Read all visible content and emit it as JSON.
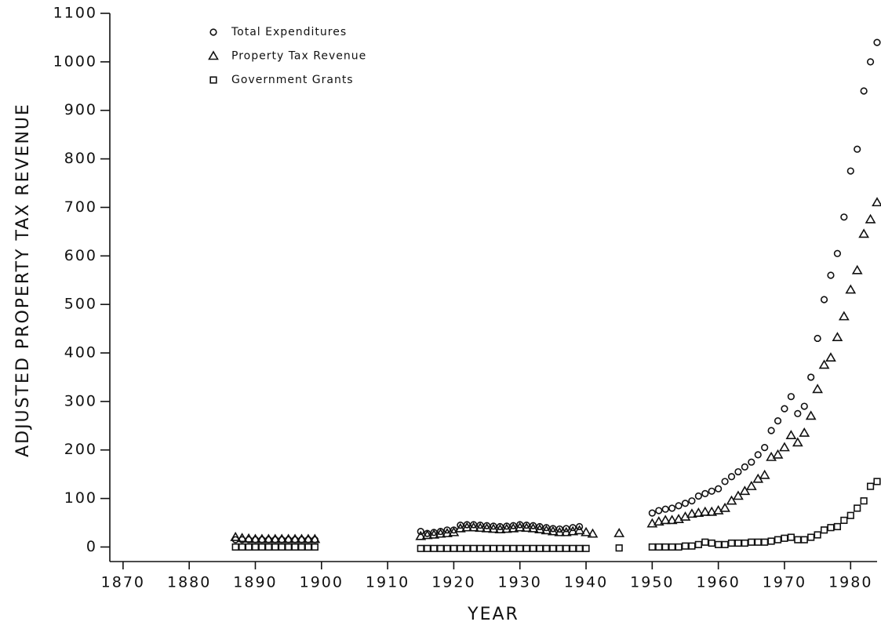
{
  "chart_data": {
    "type": "scatter",
    "x_label": "YEAR",
    "y_label": "ADJUSTED PROPERTY TAX REVENUE",
    "xlim": [
      1868,
      1984
    ],
    "ylim": [
      -30,
      1100
    ],
    "xticks": [
      1870,
      1880,
      1890,
      1900,
      1910,
      1920,
      1930,
      1940,
      1950,
      1960,
      1970,
      1980
    ],
    "yticks": [
      0,
      100,
      200,
      300,
      400,
      500,
      600,
      700,
      800,
      900,
      1000,
      1100
    ],
    "legend": "upper left",
    "series": [
      {
        "name": "Total Expenditures",
        "color": "#111111",
        "marker": "circle",
        "x": [
          1887,
          1888,
          1889,
          1890,
          1891,
          1892,
          1893,
          1894,
          1895,
          1896,
          1897,
          1898,
          1899,
          1915,
          1916,
          1917,
          1918,
          1919,
          1920,
          1921,
          1922,
          1923,
          1924,
          1925,
          1926,
          1927,
          1928,
          1929,
          1930,
          1931,
          1932,
          1933,
          1934,
          1935,
          1936,
          1937,
          1938,
          1939,
          1950,
          1951,
          1952,
          1953,
          1954,
          1955,
          1956,
          1957,
          1958,
          1959,
          1960,
          1961,
          1962,
          1963,
          1964,
          1965,
          1966,
          1967,
          1968,
          1969,
          1970,
          1971,
          1972,
          1973,
          1974,
          1975,
          1976,
          1977,
          1978,
          1979,
          1980,
          1981,
          1982,
          1983,
          1984
        ],
        "values": [
          15,
          15,
          15,
          15,
          15,
          15,
          15,
          15,
          15,
          15,
          15,
          15,
          15,
          32,
          28,
          30,
          32,
          35,
          35,
          45,
          46,
          46,
          45,
          44,
          43,
          42,
          43,
          44,
          46,
          45,
          44,
          42,
          40,
          38,
          37,
          38,
          40,
          42,
          70,
          75,
          78,
          80,
          85,
          90,
          95,
          105,
          110,
          115,
          120,
          135,
          145,
          155,
          165,
          175,
          190,
          205,
          240,
          260,
          285,
          310,
          275,
          290,
          350,
          430,
          510,
          560,
          605,
          680,
          775,
          820,
          940,
          1000,
          1040
        ]
      },
      {
        "name": "Property Tax Revenue",
        "color": "#111111",
        "marker": "triangle",
        "x": [
          1887,
          1888,
          1889,
          1890,
          1891,
          1892,
          1893,
          1894,
          1895,
          1896,
          1897,
          1898,
          1899,
          1915,
          1916,
          1917,
          1918,
          1919,
          1920,
          1921,
          1922,
          1923,
          1924,
          1925,
          1926,
          1927,
          1928,
          1929,
          1930,
          1931,
          1932,
          1933,
          1934,
          1935,
          1936,
          1937,
          1938,
          1939,
          1940,
          1941,
          1945,
          1950,
          1951,
          1952,
          1953,
          1954,
          1955,
          1956,
          1957,
          1958,
          1959,
          1960,
          1961,
          1962,
          1963,
          1964,
          1965,
          1966,
          1967,
          1968,
          1969,
          1970,
          1971,
          1972,
          1973,
          1974,
          1975,
          1976,
          1977,
          1978,
          1979,
          1980,
          1981,
          1982,
          1983,
          1984
        ],
        "values": [
          20,
          18,
          17,
          16,
          16,
          16,
          16,
          16,
          16,
          16,
          16,
          16,
          16,
          22,
          24,
          25,
          27,
          28,
          30,
          38,
          40,
          40,
          39,
          38,
          37,
          36,
          37,
          38,
          40,
          39,
          38,
          36,
          34,
          32,
          30,
          30,
          32,
          34,
          30,
          27,
          28,
          48,
          52,
          55,
          55,
          57,
          62,
          68,
          70,
          72,
          72,
          75,
          80,
          95,
          105,
          115,
          125,
          140,
          148,
          185,
          190,
          205,
          230,
          215,
          235,
          270,
          325,
          375,
          390,
          432,
          475,
          530,
          570,
          645,
          675,
          710
        ]
      },
      {
        "name": "Government Grants",
        "color": "#111111",
        "marker": "square",
        "x": [
          1887,
          1888,
          1889,
          1890,
          1891,
          1892,
          1893,
          1894,
          1895,
          1896,
          1897,
          1898,
          1899,
          1915,
          1916,
          1917,
          1918,
          1919,
          1920,
          1921,
          1922,
          1923,
          1924,
          1925,
          1926,
          1927,
          1928,
          1929,
          1930,
          1931,
          1932,
          1933,
          1934,
          1935,
          1936,
          1937,
          1938,
          1939,
          1940,
          1945,
          1950,
          1951,
          1952,
          1953,
          1954,
          1955,
          1956,
          1957,
          1958,
          1959,
          1960,
          1961,
          1962,
          1963,
          1964,
          1965,
          1966,
          1967,
          1968,
          1969,
          1970,
          1971,
          1972,
          1973,
          1974,
          1975,
          1976,
          1977,
          1978,
          1979,
          1980,
          1981,
          1982,
          1983,
          1984
        ],
        "values": [
          0,
          0,
          0,
          0,
          0,
          0,
          0,
          0,
          0,
          0,
          0,
          0,
          0,
          -3,
          -3,
          -3,
          -3,
          -3,
          -3,
          -3,
          -3,
          -3,
          -3,
          -3,
          -3,
          -3,
          -3,
          -3,
          -3,
          -3,
          -3,
          -3,
          -3,
          -3,
          -3,
          -3,
          -3,
          -3,
          -3,
          -2,
          0,
          0,
          0,
          0,
          0,
          2,
          2,
          5,
          10,
          8,
          5,
          5,
          8,
          8,
          8,
          10,
          10,
          10,
          12,
          15,
          18,
          20,
          15,
          15,
          20,
          25,
          35,
          40,
          42,
          55,
          65,
          80,
          95,
          125,
          135
        ]
      }
    ]
  }
}
